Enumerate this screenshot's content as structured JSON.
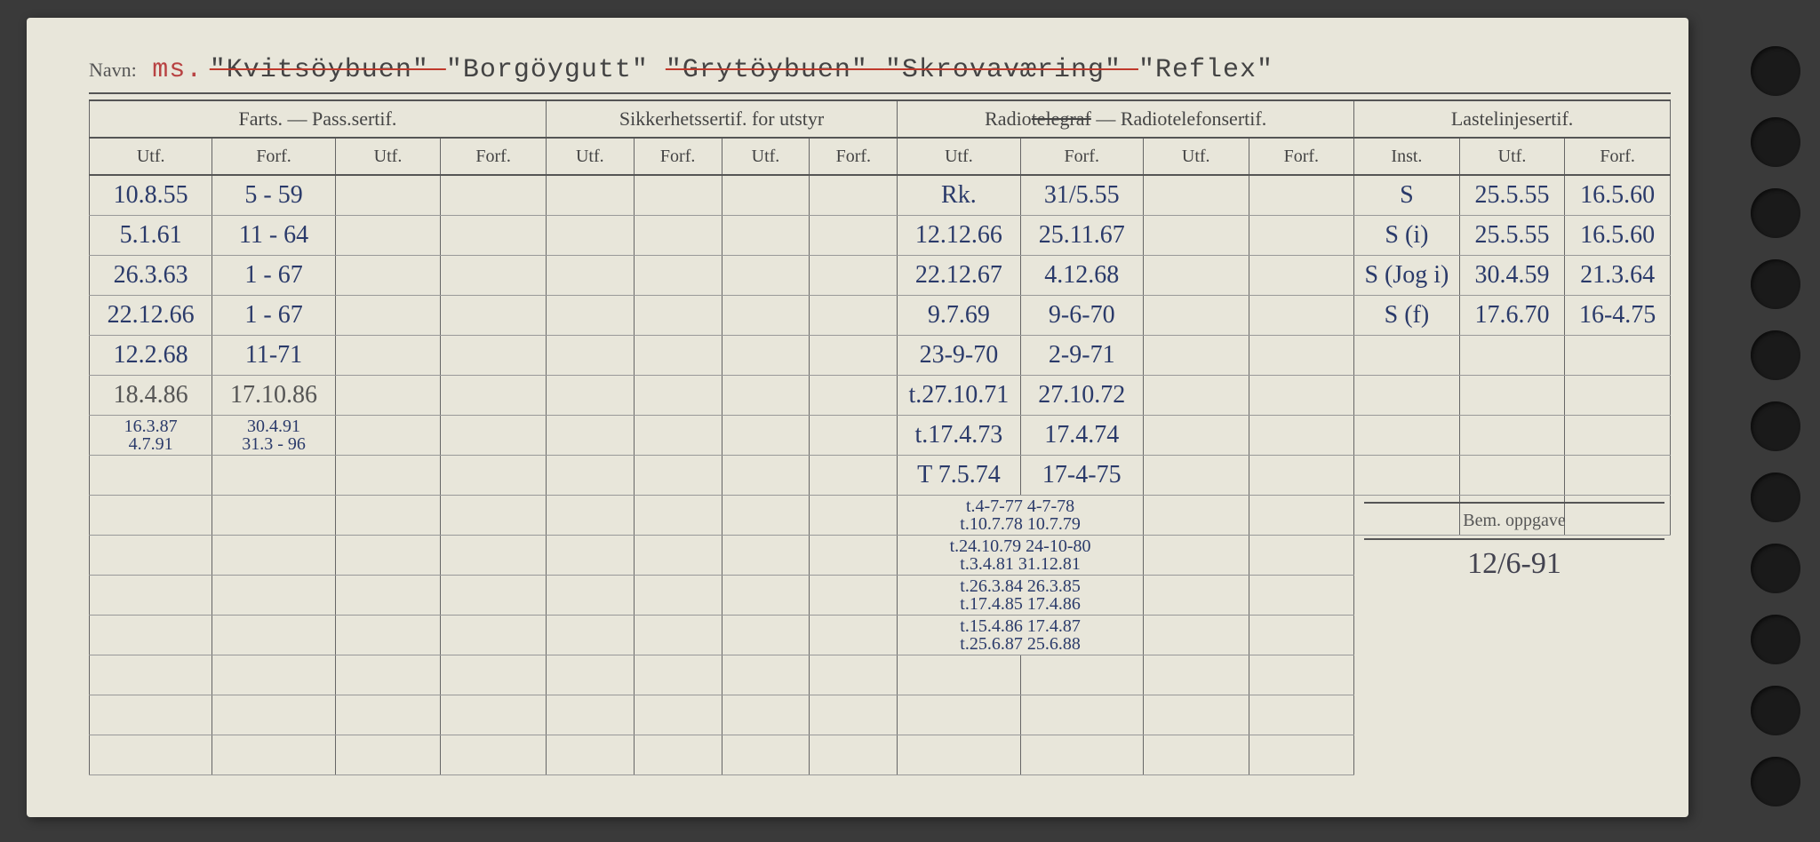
{
  "header": {
    "navn_label": "Navn:",
    "prefix": "ms.",
    "names": [
      {
        "text": "\"Kvitsöybuen\"",
        "struck": true
      },
      {
        "text": "\"Borgöygutt\"",
        "struck": false
      },
      {
        "text": "\"Grytöybuen\"",
        "struck": true
      },
      {
        "text": "\"Skrovaværing\"",
        "struck": true
      },
      {
        "text": "\"Reflex\"",
        "struck": false
      }
    ]
  },
  "columns": {
    "groups": [
      {
        "label": "Farts. — Pass.sertif.",
        "span": 4
      },
      {
        "label": "Sikkerhetssertif. for utstyr",
        "span": 4
      },
      {
        "label": "Radiotelegraf — Radiotelefonsertif.",
        "span": 4,
        "struck_word": true
      },
      {
        "label": "Lastelinjesertif.",
        "span": 3
      }
    ],
    "sub": [
      "Utf.",
      "Forf.",
      "Utf.",
      "Forf.",
      "Utf.",
      "Forf.",
      "Utf.",
      "Forf.",
      "Utf.",
      "Forf.",
      "Utf.",
      "Forf.",
      "Inst.",
      "Utf.",
      "Forf."
    ]
  },
  "rows": [
    {
      "c1": "10.8.55",
      "c2": "5 - 59",
      "c9": "Rk.",
      "c10": "31/5.55",
      "c13": "S",
      "c14": "25.5.55",
      "c15": "16.5.60"
    },
    {
      "c1": "5.1.61",
      "c2": "11 - 64",
      "c9": "12.12.66",
      "c10": "25.11.67",
      "c13": "S (i)",
      "c14": "25.5.55",
      "c15": "16.5.60"
    },
    {
      "c1": "26.3.63",
      "c2": "1 - 67",
      "c9": "22.12.67",
      "c10": "4.12.68",
      "c13": "S (Jog i)",
      "c14": "30.4.59",
      "c15": "21.3.64"
    },
    {
      "c1": "22.12.66",
      "c2": "1 - 67",
      "c9": "9.7.69",
      "c10": "9-6-70",
      "c13": "S (f)",
      "c14": "17.6.70",
      "c15": "16-4.75"
    },
    {
      "c1": "12.2.68",
      "c2": "11-71",
      "c9": "23-9-70",
      "c10": "2-9-71"
    },
    {
      "c1": "18.4.86",
      "c2": "17.10.86",
      "c9": "t.27.10.71",
      "c10": "27.10.72"
    },
    {
      "c1": "16.3.87",
      "c2": "30.4.91",
      "c1b": "4.7.91",
      "c2b": "31.3 - 96",
      "c9": "t.17.4.73",
      "c10": "17.4.74"
    },
    {
      "c9": "T 7.5.74",
      "c10": "17-4-75"
    },
    {
      "c9": "t.4-7-77 4-7-78",
      "c9small": true
    },
    {
      "c9": "t.10.7.78 10.7.79",
      "c9small": true
    },
    {
      "c9": "t.24.10.79 24-10-80",
      "c9small": true
    },
    {
      "c9": "t.3.4.81 31.12.81",
      "c9small": true
    },
    {
      "c9": "t.26.3.84 26.3.85",
      "c9small": true
    },
    {
      "c9": "t.17.4.85 17.4.86",
      "c9small": true
    },
    {
      "c9": "t.15.4.86 17.4.87",
      "c9small": true
    },
    {
      "c9": "t.25.6.87 25.6.88",
      "c9small": true
    }
  ],
  "bem": {
    "label": "Bem. oppgave",
    "value": "12/6-91"
  }
}
